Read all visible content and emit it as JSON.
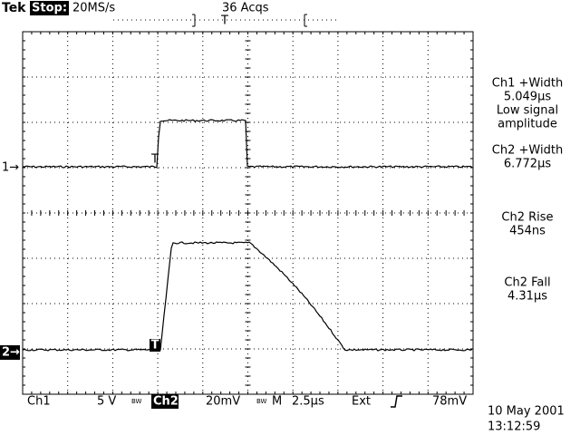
{
  "header": {
    "brand": "Tek",
    "state": "Stop:",
    "sample_rate": "20MS/s",
    "acquisitions": "36 Acqs",
    "trigger_position": "T"
  },
  "channel_markers": [
    "1→",
    "2→"
  ],
  "trace_markers": [
    "T",
    "T"
  ],
  "measurements": [
    {
      "label": "Ch1 +Width",
      "value": "5.049µs",
      "note": [
        "Low signal",
        "amplitude"
      ]
    },
    {
      "label": "Ch2 +Width",
      "value": "6.772µs"
    },
    {
      "label": "Ch2 Rise",
      "value": "454ns"
    },
    {
      "label": "Ch2 Fall",
      "value": "4.31µs"
    }
  ],
  "status_bar": {
    "ch1": "Ch1",
    "ch1_scale": "5 V",
    "ch1_bw": "BW",
    "ch2": "Ch2",
    "ch2_scale": "20mV",
    "ch2_bw": "BW",
    "timebase_label": "M",
    "timebase": "2.5µs",
    "trigger_source": "Ext",
    "trigger_level": "78mV"
  },
  "date": "10 May 2001",
  "time": "13:12:59"
}
